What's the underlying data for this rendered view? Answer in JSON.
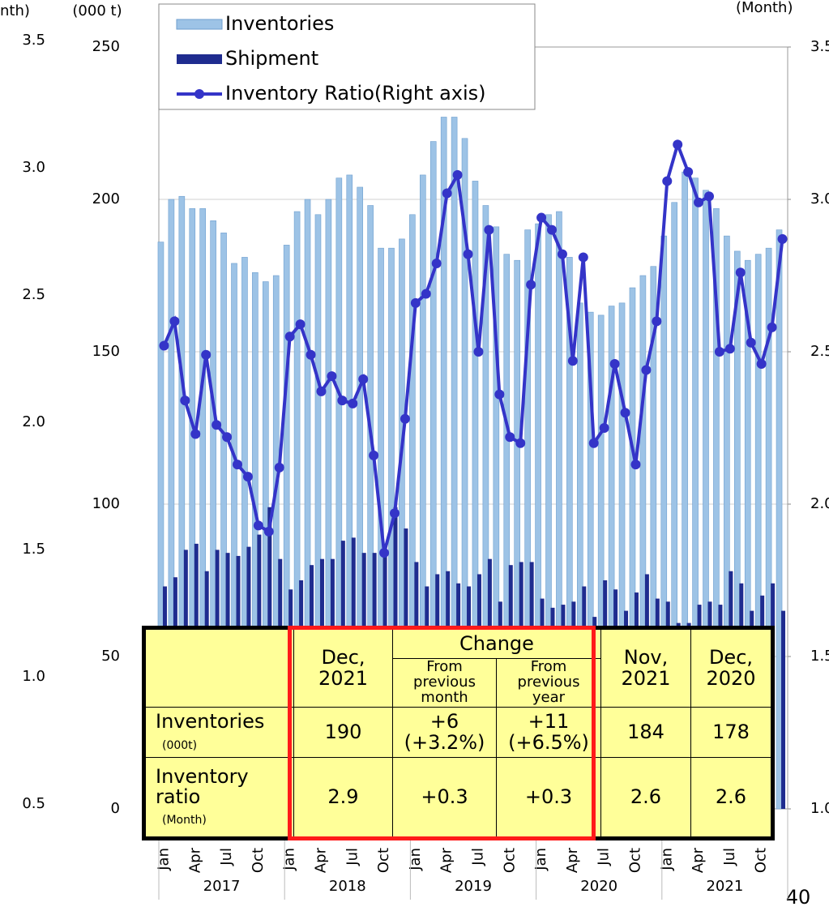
{
  "chart_data": {
    "type": "bar",
    "y_label": "(000 t)",
    "y2_label": "(Month)",
    "y3_label": "nth)",
    "categories": [
      "Jan",
      null,
      null,
      "Apr",
      null,
      null,
      "Jul",
      null,
      null,
      "Oct",
      null,
      null,
      "Jan",
      null,
      null,
      "Apr",
      null,
      null,
      "Jul",
      null,
      null,
      "Oct",
      null,
      null,
      "Jan",
      null,
      null,
      "Apr",
      null,
      null,
      "Jul",
      null,
      null,
      "Oct",
      null,
      null,
      "Jan",
      null,
      null,
      "Apr",
      null,
      null,
      "Jul",
      null,
      null,
      "Oct",
      null,
      null,
      "Jan",
      null,
      null,
      "Apr",
      null,
      null,
      "Jul",
      null,
      null,
      "Oct",
      null,
      null
    ],
    "years": [
      "2017",
      "2018",
      "2019",
      "2020",
      "2021"
    ],
    "series": [
      {
        "name": "Inventories",
        "color": "#9dc3e6",
        "values": [
          186,
          200,
          201,
          197,
          197,
          193,
          189,
          179,
          181,
          176,
          173,
          175,
          185,
          196,
          200,
          195,
          200,
          207,
          208,
          204,
          198,
          184,
          184,
          187,
          195,
          208,
          219,
          227,
          227,
          220,
          206,
          198,
          191,
          182,
          180,
          190,
          192,
          195,
          196,
          181,
          166,
          163,
          162,
          165,
          166,
          171,
          175,
          178,
          188,
          199,
          209,
          207,
          203,
          197,
          188,
          183,
          180,
          182,
          184,
          190
        ]
      },
      {
        "name": "Shipment",
        "color": "#1f2c8f",
        "values": [
          73,
          76,
          85,
          87,
          78,
          85,
          84,
          83,
          86,
          90,
          99,
          82,
          72,
          75,
          80,
          82,
          82,
          88,
          89,
          84,
          84,
          85,
          99,
          92,
          81,
          73,
          77,
          78,
          74,
          73,
          77,
          82,
          68,
          80,
          81,
          81,
          69,
          66,
          67,
          68,
          73,
          63,
          75,
          72,
          65,
          71,
          77,
          69,
          68,
          61,
          61,
          67,
          68,
          67,
          78,
          74,
          65,
          70,
          74,
          65
        ]
      },
      {
        "name": "Inventory Ratio(Right axis)",
        "type": "line",
        "axis": "y2",
        "color": "#3434c8",
        "values": [
          2.52,
          2.6,
          2.34,
          2.23,
          2.49,
          2.26,
          2.22,
          2.13,
          2.09,
          1.93,
          1.91,
          2.12,
          2.55,
          2.59,
          2.49,
          2.37,
          2.42,
          2.34,
          2.33,
          2.41,
          2.16,
          1.84,
          1.97,
          2.28,
          2.66,
          2.69,
          2.79,
          3.02,
          3.08,
          2.82,
          2.5,
          2.9,
          2.36,
          2.22,
          2.2,
          2.72,
          2.94,
          2.9,
          2.82,
          2.47,
          2.81,
          2.2,
          2.25,
          2.46,
          2.3,
          2.13,
          2.44,
          2.6,
          3.06,
          3.18,
          3.09,
          2.99,
          3.01,
          2.5,
          2.51,
          2.76,
          2.53,
          2.46,
          2.58,
          2.87
        ]
      }
    ],
    "ylim": [
      0,
      250
    ],
    "yticks": [
      0,
      50,
      100,
      150,
      200,
      250
    ],
    "y2lim": [
      1,
      3.5
    ],
    "y2ticks": [
      {
        "value": 1,
        "label": "1.0"
      },
      1.5,
      {
        "value": 2,
        "label": "2.0"
      },
      2.5,
      {
        "value": 3,
        "label": "3.0"
      },
      3.5
    ],
    "y3lim": [
      0.5,
      3.5
    ],
    "y3ticks": [
      0.5,
      {
        "value": 1,
        "label": "1.0"
      },
      1.5,
      {
        "value": 2,
        "label": "2.0"
      },
      2.5,
      {
        "value": 3,
        "label": "3.0"
      },
      3.5
    ],
    "grid": true,
    "legend": "top-left"
  },
  "table": {
    "group_header": "Change",
    "columns": [
      [
        "Dec,",
        "2021"
      ],
      [
        "From",
        "previous",
        "month"
      ],
      [
        "From",
        "previous",
        "year"
      ],
      [
        "Nov,",
        "2021"
      ],
      [
        "Dec,",
        "2020"
      ]
    ],
    "rows": [
      {
        "label": "Inventories",
        "unit": "(000t)",
        "cells": [
          [
            "190"
          ],
          [
            "+6",
            "(+3.2%)"
          ],
          [
            "+11",
            "(+6.5%)"
          ],
          [
            "184"
          ],
          [
            "178"
          ]
        ]
      },
      {
        "label": "Inventory ratio",
        "unit": "(Month)",
        "cells": [
          [
            "2.9"
          ],
          [
            "+0.3"
          ],
          [
            "+0.3"
          ],
          [
            "2.6"
          ],
          [
            "2.6"
          ]
        ]
      }
    ]
  },
  "page_number": "40"
}
